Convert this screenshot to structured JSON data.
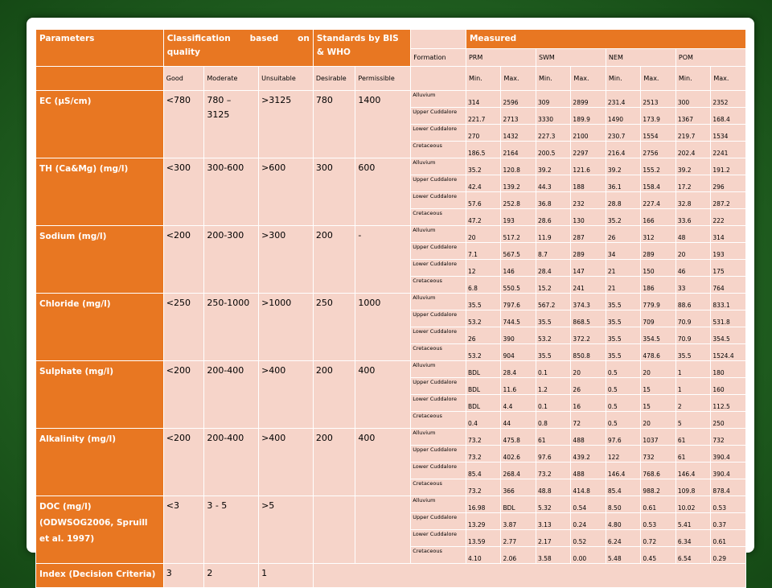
{
  "headers": {
    "parameters": "Parameters",
    "classification_1": "Classification",
    "classification_2": "based",
    "classification_3": "on",
    "classification_4": "quality",
    "standards": "Standards by BIS & WHO",
    "measured": "Measured",
    "formation": "Formation",
    "regions": [
      "PRM",
      "SWM",
      "NEM",
      "POM"
    ]
  },
  "subheaders": {
    "good": "Good",
    "moderate": "Moderate",
    "unsuitable": "Unsuitable",
    "desirable": "Desirable",
    "permissible": "Permissible",
    "min": "Min.",
    "max": "Max."
  },
  "parameters": [
    {
      "name": "EC (µS/cm)",
      "good": "<780",
      "moderate": "780 – 3125",
      "unsuitable": ">3125",
      "desirable": "780",
      "permissible": "1400",
      "rows": [
        {
          "formation": "Alluvium",
          "values": [
            "314",
            "2596",
            "309",
            "2899",
            "231.4",
            "2513",
            "300",
            "2352"
          ]
        },
        {
          "formation": "Upper Cuddalore",
          "values": [
            "221.7",
            "2713",
            "3330",
            "189.9",
            "1490",
            "173.9",
            "1367",
            "168.4"
          ]
        },
        {
          "formation": "Lower Cuddalore",
          "values": [
            "270",
            "1432",
            "227.3",
            "2100",
            "230.7",
            "1554",
            "219.7",
            "1534"
          ]
        },
        {
          "formation": "Cretaceous",
          "values": [
            "186.5",
            "2164",
            "200.5",
            "2297",
            "216.4",
            "2756",
            "202.4",
            "2241"
          ]
        }
      ]
    },
    {
      "name": "TH (Ca&Mg) (mg/l)",
      "good": "<300",
      "moderate": "300-600",
      "unsuitable": ">600",
      "desirable": "300",
      "permissible": "600",
      "rows": [
        {
          "formation": "Alluvium",
          "values": [
            "35.2",
            "120.8",
            "39.2",
            "121.6",
            "39.2",
            "155.2",
            "39.2",
            "191.2"
          ]
        },
        {
          "formation": "Upper Cuddalore",
          "values": [
            "42.4",
            "139.2",
            "44.3",
            "188",
            "36.1",
            "158.4",
            "17.2",
            "296"
          ]
        },
        {
          "formation": "Lower Cuddalore",
          "values": [
            "57.6",
            "252.8",
            "36.8",
            "232",
            "28.8",
            "227.4",
            "32.8",
            "287.2"
          ]
        },
        {
          "formation": "Cretaceous",
          "values": [
            "47.2",
            "193",
            "28.6",
            "130",
            "35.2",
            "166",
            "33.6",
            "222"
          ]
        }
      ]
    },
    {
      "name": "Sodium (mg/l)",
      "good": "<200",
      "moderate": "200-300",
      "unsuitable": ">300",
      "desirable": "200",
      "permissible": "-",
      "rows": [
        {
          "formation": "Alluvium",
          "values": [
            "20",
            "517.2",
            "11.9",
            "287",
            "26",
            "312",
            "48",
            "314"
          ]
        },
        {
          "formation": "Upper Cuddalore",
          "values": [
            "7.1",
            "567.5",
            "8.7",
            "289",
            "34",
            "289",
            "20",
            "193"
          ]
        },
        {
          "formation": "Lower Cuddalore",
          "values": [
            "12",
            "146",
            "28.4",
            "147",
            "21",
            "150",
            "46",
            "175"
          ]
        },
        {
          "formation": "Cretaceous",
          "values": [
            "6.8",
            "550.5",
            "15.2",
            "241",
            "21",
            "186",
            "33",
            "764"
          ]
        }
      ]
    },
    {
      "name": "Chloride (mg/l)",
      "good": "<250",
      "moderate": "250-1000",
      "unsuitable": ">1000",
      "desirable": "250",
      "permissible": "1000",
      "rows": [
        {
          "formation": "Alluvium",
          "values": [
            "35.5",
            "797.6",
            "567.2",
            "374.3",
            "35.5",
            "779.9",
            "88.6",
            "833.1"
          ]
        },
        {
          "formation": "Upper Cuddalore",
          "values": [
            "53.2",
            "744.5",
            "35.5",
            "868.5",
            "35.5",
            "709",
            "70.9",
            "531.8"
          ]
        },
        {
          "formation": "Lower Cuddalore",
          "values": [
            "26",
            "390",
            "53.2",
            "372.2",
            "35.5",
            "354.5",
            "70.9",
            "354.5"
          ]
        },
        {
          "formation": "Cretaceous",
          "values": [
            "53.2",
            "904",
            "35.5",
            "850.8",
            "35.5",
            "478.6",
            "35.5",
            "1524.4"
          ]
        }
      ]
    },
    {
      "name": "Sulphate (mg/l)",
      "good": "<200",
      "moderate": "200-400",
      "unsuitable": ">400",
      "desirable": "200",
      "permissible": "400",
      "rows": [
        {
          "formation": "Alluvium",
          "values": [
            "BDL",
            "28.4",
            "0.1",
            "20",
            "0.5",
            "20",
            "1",
            "180"
          ]
        },
        {
          "formation": "Upper Cuddalore",
          "values": [
            "BDL",
            "11.6",
            "1.2",
            "26",
            "0.5",
            "15",
            "1",
            "160"
          ]
        },
        {
          "formation": "Lower Cuddalore",
          "values": [
            "BDL",
            "4.4",
            "0.1",
            "16",
            "0.5",
            "15",
            "2",
            "112.5"
          ]
        },
        {
          "formation": "Cretaceous",
          "values": [
            "0.4",
            "44",
            "0.8",
            "72",
            "0.5",
            "20",
            "5",
            "250"
          ]
        }
      ]
    },
    {
      "name": "Alkalinity (mg/l)",
      "good": "<200",
      "moderate": "200-400",
      "unsuitable": ">400",
      "desirable": "200",
      "permissible": "400",
      "rows": [
        {
          "formation": "Alluvium",
          "values": [
            "73.2",
            "475.8",
            "61",
            "488",
            "97.6",
            "1037",
            "61",
            "732"
          ]
        },
        {
          "formation": "Upper Cuddalore",
          "values": [
            "73.2",
            "402.6",
            "97.6",
            "439.2",
            "122",
            "732",
            "61",
            "390.4"
          ]
        },
        {
          "formation": "Lower Cuddalore",
          "values": [
            "85.4",
            "268.4",
            "73.2",
            "488",
            "146.4",
            "768.6",
            "146.4",
            "390.4"
          ]
        },
        {
          "formation": "Cretaceous",
          "values": [
            "73.2",
            "366",
            "48.8",
            "414.8",
            "85.4",
            "988.2",
            "109.8",
            "878.4"
          ]
        }
      ]
    },
    {
      "name": "DOC (mg/l) (ODWSOG2006, Spruill et al. 1997)",
      "good": "<3",
      "moderate": "3 - 5",
      "unsuitable": ">5",
      "desirable": "",
      "permissible": "",
      "rows": [
        {
          "formation": "Alluvium",
          "values": [
            "16.98",
            "BDL",
            "5.32",
            "0.54",
            "8.50",
            "0.61",
            "10.02",
            "0.53"
          ]
        },
        {
          "formation": "Upper Cuddalore",
          "values": [
            "13.29",
            "3.87",
            "3.13",
            "0.24",
            "4.80",
            "0.53",
            "5.41",
            "0.37"
          ]
        },
        {
          "formation": "Lower Cuddalore",
          "values": [
            "13.59",
            "2.77",
            "2.17",
            "0.52",
            "6.24",
            "0.72",
            "6.34",
            "0.61"
          ]
        },
        {
          "formation": "Cretaceous",
          "values": [
            "4.10",
            "2.06",
            "3.58",
            "0.00",
            "5.48",
            "0.45",
            "6.54",
            "0.29"
          ]
        }
      ]
    }
  ],
  "index_row": {
    "label": "Index (Decision Criteria)",
    "good": "3",
    "moderate": "2",
    "unsuitable": "1"
  },
  "colors": {
    "header": "#e87722",
    "cell": "#f6d4c9",
    "background": "#236423"
  }
}
